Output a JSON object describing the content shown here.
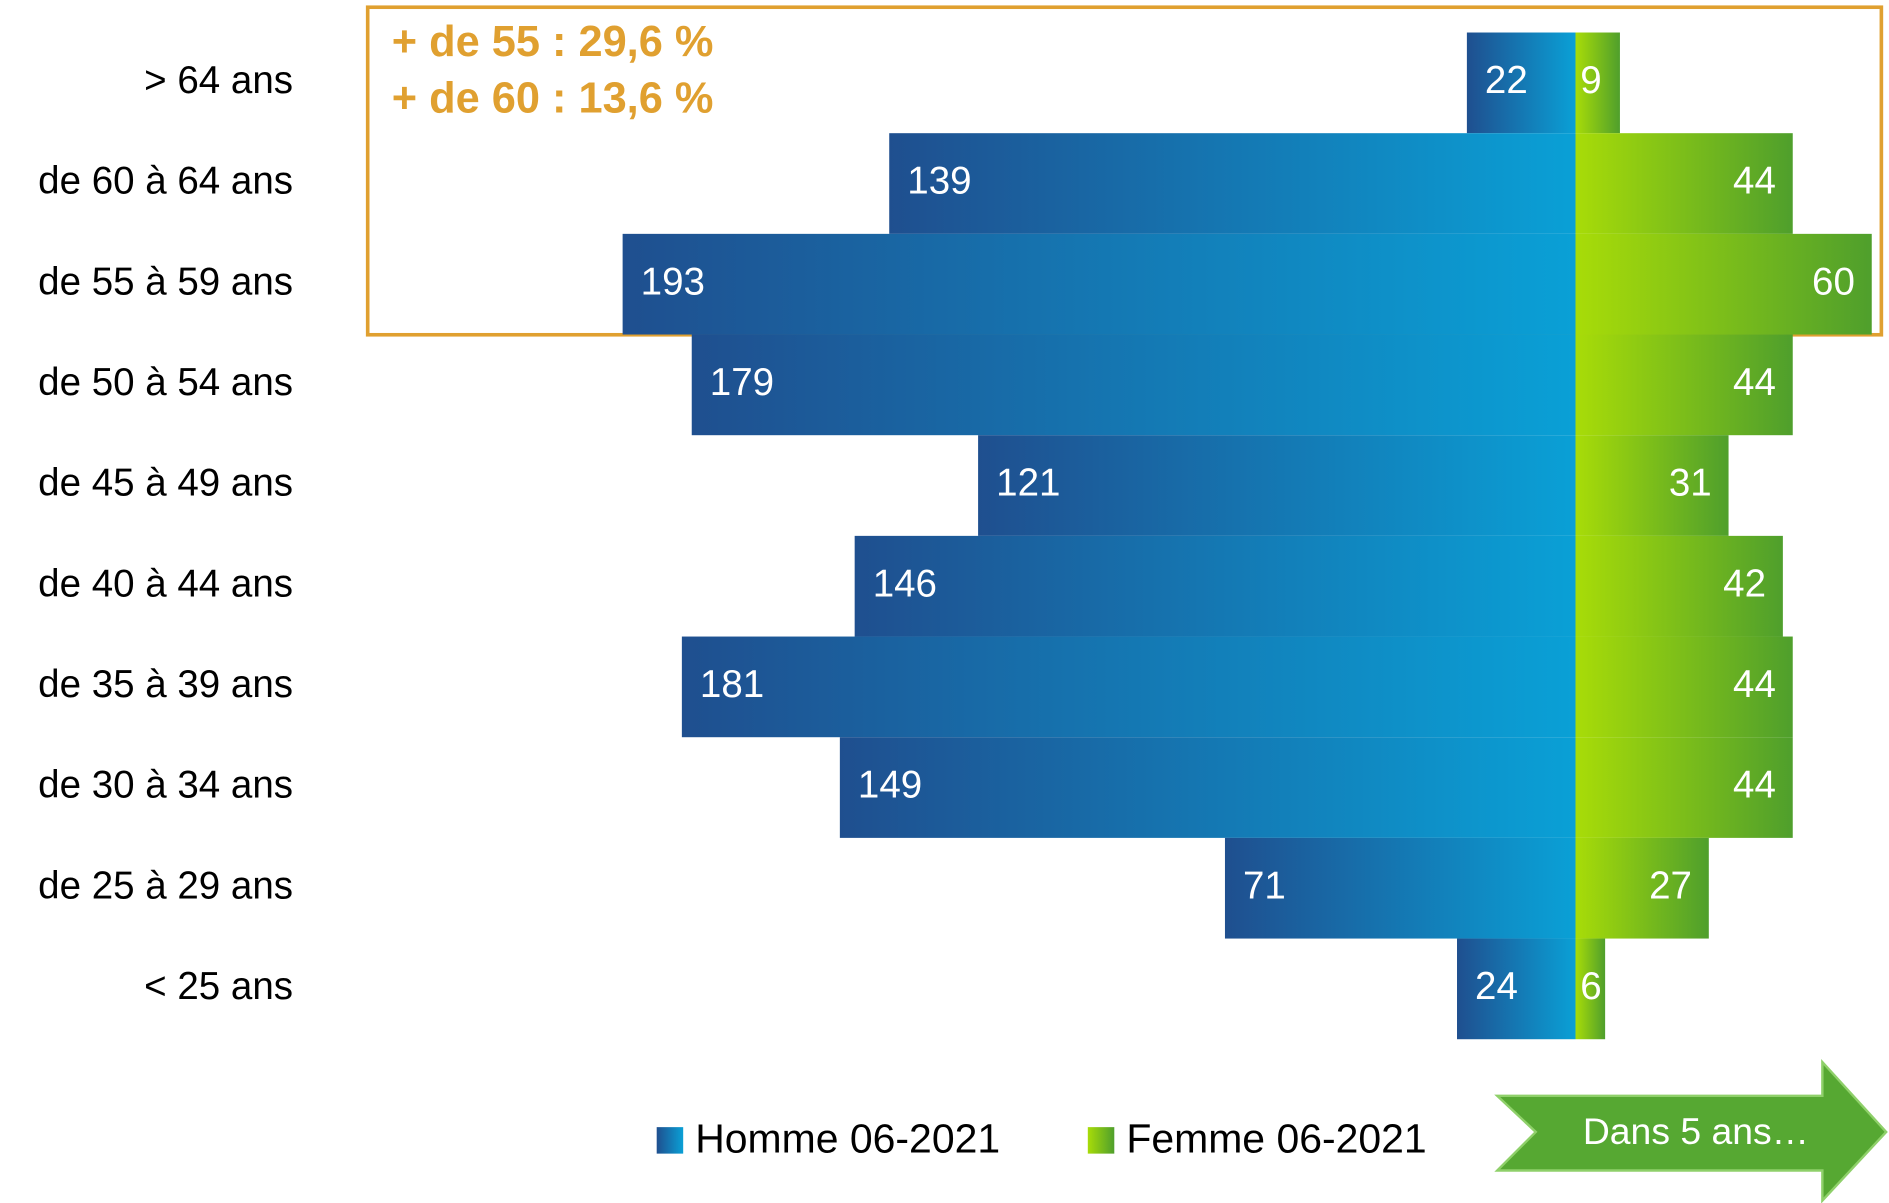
{
  "chart_data": {
    "type": "bar",
    "categories": [
      "> 64 ans",
      "de 60 à 64 ans",
      "de 55 à 59 ans",
      "de 50 à 54 ans",
      "de 45 à 49 ans",
      "de 40 à 44 ans",
      "de 35 à 39 ans",
      "de 30 à 34 ans",
      "de 25 à 29 ans",
      "< 25 ans"
    ],
    "series": [
      {
        "name": "Homme 06-2021",
        "color": "#1f4f8f",
        "values": [
          22,
          139,
          193,
          179,
          121,
          146,
          181,
          149,
          71,
          24
        ]
      },
      {
        "name": "Femme 06-2021",
        "color": "#4f9f2c",
        "values": [
          9,
          44,
          60,
          44,
          31,
          42,
          44,
          44,
          27,
          6
        ]
      }
    ],
    "annotations": [
      "+ de 55 : 29,6 %",
      "+ de 60 : 13,6 %"
    ]
  },
  "button": {
    "label": "Dans 5 ans…"
  }
}
